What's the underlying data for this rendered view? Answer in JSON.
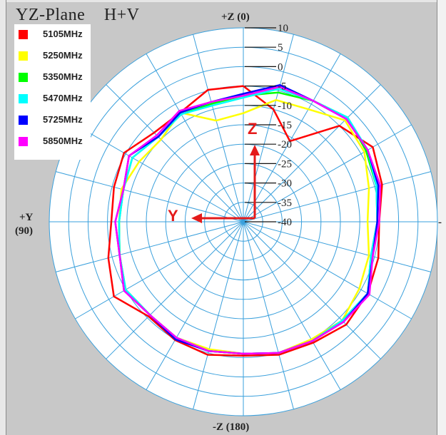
{
  "chart_data": {
    "type": "line",
    "polar": true,
    "title": "YZ-Plane",
    "subtitle": "H+V",
    "angle_labels": {
      "top": "+Z (0)",
      "bottom": "-Z (180)",
      "left_top": "+Y",
      "left_bottom": "(90)",
      "right": "-"
    },
    "radial_range": [
      -40,
      10
    ],
    "radial_ticks": [
      10,
      5,
      0,
      -5,
      -10,
      -15,
      -20,
      -25,
      -30,
      -35,
      -40
    ],
    "radial_tick_labels": [
      "10",
      "5",
      "0",
      "-5",
      "-10",
      "-15",
      "-20",
      "-25",
      "-30",
      "-35",
      "-40"
    ],
    "angle_step": 15,
    "grid": true,
    "legend_position": "top-left",
    "axis_annotations": {
      "z_label": "Z",
      "y_label": "Y"
    },
    "angles": [
      0,
      15,
      30,
      45,
      60,
      75,
      90,
      105,
      120,
      135,
      150,
      165,
      180,
      195,
      210,
      225,
      240,
      255,
      270,
      285,
      300,
      315,
      330,
      345
    ],
    "series": [
      {
        "name": "5105MHz",
        "color": "#ff0000",
        "values": [
          -5.0,
          -4.8,
          -7.5,
          -7.5,
          -4.5,
          -5.5,
          -6.0,
          -4.0,
          -1.5,
          -5.5,
          -4.8,
          -4.5,
          -5.5,
          -4.5,
          -4.0,
          -2.5,
          -3.0,
          -4.0,
          -5.0,
          -3.0,
          -1.5,
          -5.0,
          -16.0,
          -10.0
        ]
      },
      {
        "name": "5250MHz",
        "color": "#ffff00",
        "values": [
          -12.0,
          -13.0,
          -7.5,
          -10.0,
          -9.0,
          -7.5,
          -8.0,
          -7.0,
          -5.0,
          -6.0,
          -5.5,
          -6.0,
          -6.0,
          -5.0,
          -5.0,
          -4.0,
          -5.5,
          -6.5,
          -8.0,
          -6.5,
          -4.0,
          -3.0,
          -6.5,
          -7.5
        ]
      },
      {
        "name": "5350MHz",
        "color": "#00ff00",
        "values": [
          -7.5,
          -8.5,
          -8.0,
          -9.0,
          -7.0,
          -8.0,
          -8.0,
          -7.0,
          -5.0,
          -6.0,
          -5.5,
          -5.5,
          -6.0,
          -5.0,
          -4.5,
          -4.0,
          -3.0,
          -6.0,
          -5.5,
          -4.5,
          -3.5,
          -2.0,
          -4.0,
          -5.5
        ]
      },
      {
        "name": "5470MHz",
        "color": "#00ffff",
        "values": [
          -8.0,
          -9.0,
          -8.0,
          -9.0,
          -7.0,
          -8.0,
          -8.0,
          -7.0,
          -5.0,
          -6.0,
          -5.5,
          -5.5,
          -6.0,
          -5.0,
          -4.5,
          -4.0,
          -3.0,
          -6.0,
          -5.5,
          -4.5,
          -3.0,
          -2.0,
          -4.0,
          -4.5
        ]
      },
      {
        "name": "5725MHz",
        "color": "#0000ff",
        "values": [
          -7.0,
          -8.0,
          -7.5,
          -9.0,
          -6.0,
          -8.0,
          -7.0,
          -7.0,
          -4.5,
          -6.0,
          -5.0,
          -5.5,
          -6.0,
          -5.0,
          -4.5,
          -3.5,
          -3.0,
          -5.5,
          -5.5,
          -4.0,
          -3.0,
          -2.5,
          -4.0,
          -3.5
        ]
      },
      {
        "name": "5850MHz",
        "color": "#ff00ff",
        "values": [
          -7.5,
          -8.0,
          -7.0,
          -8.5,
          -6.0,
          -8.0,
          -7.0,
          -7.0,
          -4.5,
          -6.0,
          -5.5,
          -5.5,
          -6.0,
          -5.0,
          -4.5,
          -3.5,
          -2.5,
          -5.5,
          -5.0,
          -3.5,
          -3.0,
          -2.5,
          -4.0,
          -4.0
        ]
      }
    ]
  }
}
